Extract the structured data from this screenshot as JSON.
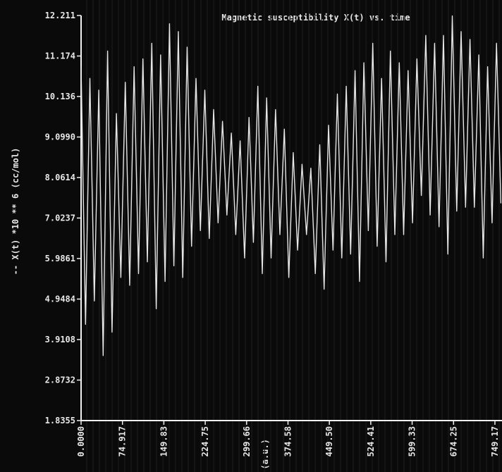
{
  "chart_data": {
    "type": "line",
    "title": "Magnetic susceptibility X(t) vs. time",
    "ylabel": "-- X(t) *10 ** 6 (cc/mol)",
    "xlabel": "t (a.u.)",
    "y_tick_labels": [
      "12.211",
      "11.174",
      "10.136",
      "9.0990",
      "8.0614",
      "7.0237",
      "5.9861",
      "4.9484",
      "3.9108",
      "2.8732",
      "1.8355"
    ],
    "x_tick_labels": [
      "0.0000",
      "74.917",
      "149.83",
      "224.75",
      "299.66",
      "374.58",
      "449.50",
      "524.41",
      "599.33",
      "674.25",
      "749.17"
    ],
    "xlim": [
      0,
      762
    ],
    "ylim": [
      1.8355,
      12.211
    ],
    "series": [
      {
        "x": [
          0,
          8,
          16,
          24,
          32,
          40,
          48,
          56,
          64,
          72,
          80,
          88,
          96,
          104,
          112,
          120,
          128,
          136,
          144,
          152,
          160,
          168,
          176,
          184,
          192,
          200,
          208,
          216,
          224,
          232,
          240,
          248,
          256,
          264,
          272,
          280,
          288,
          296,
          304,
          312,
          320,
          328,
          336,
          344,
          352,
          360,
          368,
          376,
          384,
          392,
          400,
          408,
          416,
          424,
          432,
          440,
          448,
          456,
          464,
          472,
          480,
          488,
          496,
          504,
          512,
          520,
          528,
          536,
          544,
          552,
          560,
          568,
          576,
          584,
          592,
          600,
          608,
          616,
          624,
          632,
          640,
          648,
          656,
          664,
          672,
          680,
          688,
          696,
          704,
          712,
          720,
          728,
          736,
          744,
          752,
          760
        ],
        "y": [
          10.9,
          4.3,
          10.6,
          4.9,
          10.3,
          3.5,
          11.3,
          4.1,
          9.7,
          5.5,
          10.5,
          5.3,
          10.9,
          5.6,
          11.1,
          5.9,
          11.5,
          4.7,
          11.2,
          5.4,
          12.0,
          5.8,
          11.8,
          5.5,
          11.4,
          6.3,
          10.6,
          6.7,
          10.3,
          6.5,
          9.8,
          6.9,
          9.5,
          7.1,
          9.2,
          6.6,
          9.0,
          6.0,
          9.6,
          6.4,
          10.4,
          5.6,
          10.1,
          6.0,
          9.8,
          6.6,
          9.3,
          5.5,
          8.7,
          6.2,
          8.4,
          6.6,
          8.3,
          5.6,
          8.9,
          5.2,
          9.4,
          6.2,
          10.2,
          6.0,
          10.4,
          6.1,
          10.8,
          5.4,
          11.0,
          6.7,
          11.5,
          6.3,
          10.6,
          5.9,
          11.3,
          6.6,
          11.0,
          6.6,
          10.8,
          6.9,
          11.1,
          7.6,
          11.7,
          7.1,
          11.5,
          6.8,
          11.7,
          6.1,
          12.2,
          7.2,
          11.8,
          7.3,
          11.6,
          7.3,
          11.2,
          6.0,
          10.9,
          6.9,
          11.5,
          7.4
        ]
      }
    ],
    "grid": false
  }
}
